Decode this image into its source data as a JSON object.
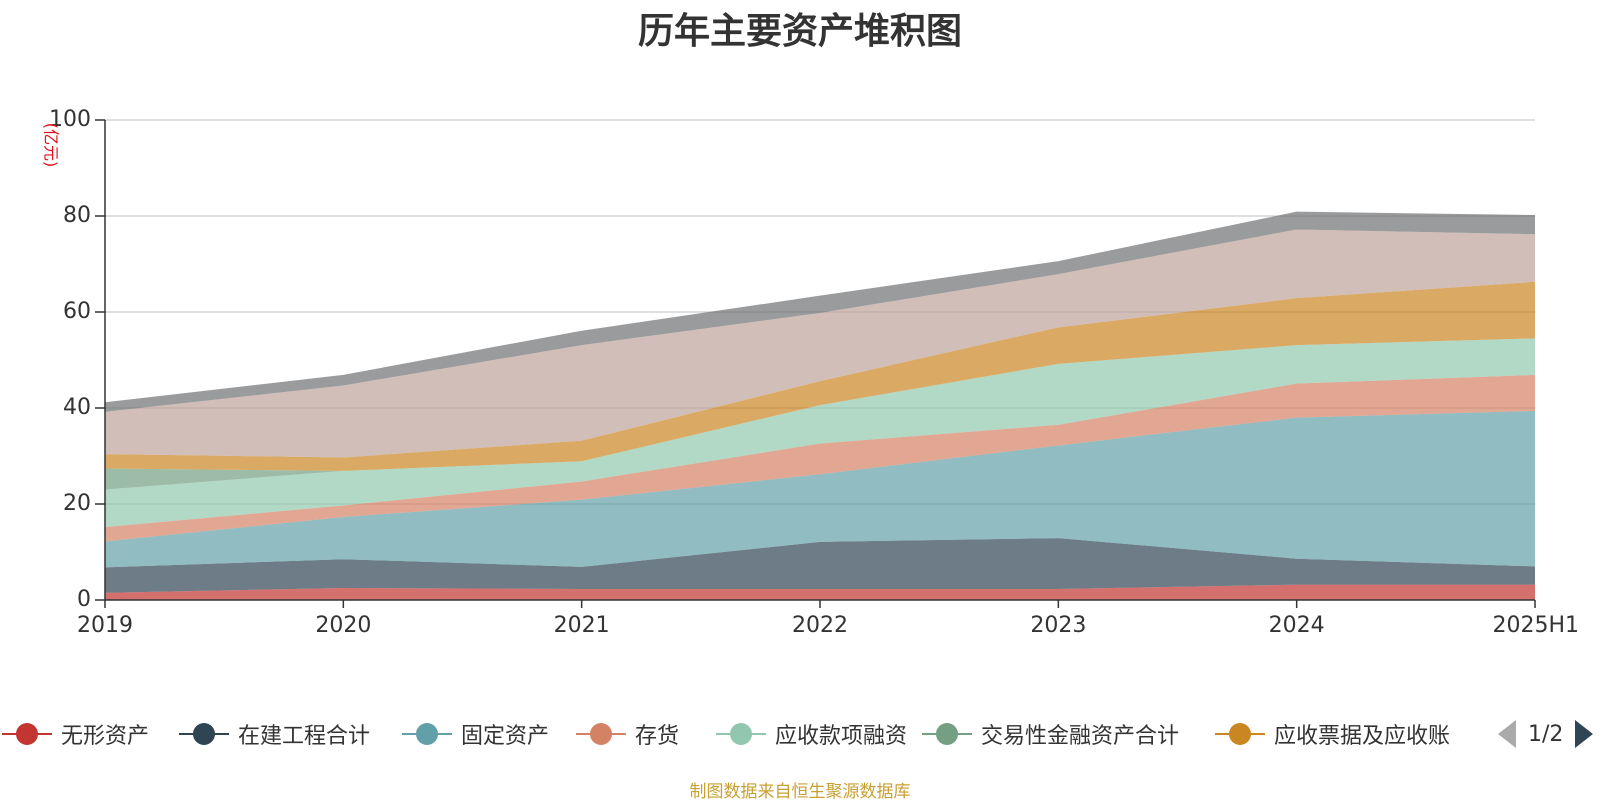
{
  "title": "历年主要资产堆积图",
  "source_note": "制图数据来自恒生聚源数据库",
  "legend_pager": {
    "text": "1/2",
    "prev_icon": "triangle-left-icon",
    "next_icon": "triangle-right-icon"
  },
  "legend": [
    {
      "name": "无形资产",
      "color": "#c23531"
    },
    {
      "name": "在建工程合计",
      "color": "#2f4554"
    },
    {
      "name": "固定资产",
      "color": "#61a0a8"
    },
    {
      "name": "存货",
      "color": "#d48265"
    },
    {
      "name": "应收款项融资",
      "color": "#91c7ae"
    },
    {
      "name": "交易性金融资产合计",
      "color": "#749f83"
    },
    {
      "name": "应收票据及应收账",
      "color": "#ca8622"
    }
  ],
  "chart_data": {
    "type": "area",
    "stacked": true,
    "title": "历年主要资产堆积图",
    "ylabel": "(亿元)",
    "xlabel": "",
    "ylim": [
      0,
      100
    ],
    "yticks": [
      0,
      20,
      40,
      60,
      80,
      100
    ],
    "grid": true,
    "categories": [
      "2019",
      "2020",
      "2021",
      "2022",
      "2023",
      "2024",
      "2025H1"
    ],
    "series": [
      {
        "name": "无形资产",
        "color": "#c23531",
        "values": [
          1.5,
          2.5,
          2.3,
          2.3,
          2.3,
          3.2,
          3.2
        ]
      },
      {
        "name": "在建工程合计",
        "color": "#2f4554",
        "values": [
          5.3,
          6.0,
          4.6,
          9.8,
          10.6,
          5.4,
          3.8
        ]
      },
      {
        "name": "固定资产",
        "color": "#61a0a8",
        "values": [
          5.4,
          8.8,
          14.0,
          14.1,
          19.3,
          29.4,
          32.4
        ]
      },
      {
        "name": "存货",
        "color": "#d48265",
        "values": [
          3.0,
          2.4,
          3.8,
          6.4,
          4.3,
          7.1,
          7.5
        ]
      },
      {
        "name": "应收款项融资",
        "color": "#91c7ae",
        "values": [
          7.8,
          7.2,
          4.2,
          8.0,
          12.7,
          8.0,
          7.6
        ]
      },
      {
        "name": "交易性金融资产合计",
        "color": "#749f83",
        "values": [
          4.4,
          0.0,
          0.0,
          0.0,
          0.0,
          0.0,
          0.0
        ]
      },
      {
        "name": "应收票据及应收账",
        "color": "#ca8622",
        "values": [
          3.0,
          2.8,
          4.3,
          5.0,
          7.6,
          9.8,
          11.8
        ]
      },
      {
        "name": "",
        "color": "#bda29a",
        "values": [
          8.8,
          15.0,
          19.9,
          14.2,
          11.1,
          14.3,
          9.9
        ]
      },
      {
        "name": "",
        "color": "#6e7074",
        "values": [
          2.0,
          2.2,
          3.0,
          3.6,
          2.7,
          3.7,
          4.0
        ]
      }
    ]
  }
}
